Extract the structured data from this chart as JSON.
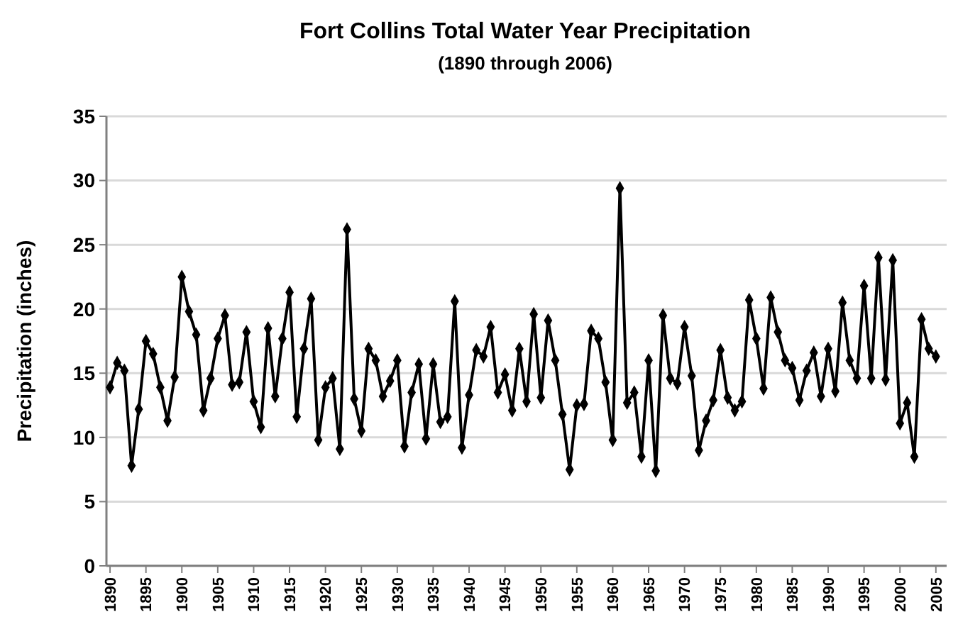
{
  "chart_data": {
    "type": "line",
    "title": "Fort Collins Total Water Year Precipitation",
    "subtitle": "(1890 through 2006)",
    "ylabel": "Precipitation (inches)",
    "x": [
      1890,
      1891,
      1892,
      1893,
      1894,
      1895,
      1896,
      1897,
      1898,
      1899,
      1900,
      1901,
      1902,
      1903,
      1904,
      1905,
      1906,
      1907,
      1908,
      1909,
      1910,
      1911,
      1912,
      1913,
      1914,
      1915,
      1916,
      1917,
      1918,
      1919,
      1920,
      1921,
      1922,
      1923,
      1924,
      1925,
      1926,
      1927,
      1928,
      1929,
      1930,
      1931,
      1932,
      1933,
      1934,
      1935,
      1936,
      1937,
      1938,
      1939,
      1940,
      1941,
      1942,
      1943,
      1944,
      1945,
      1946,
      1947,
      1948,
      1949,
      1950,
      1951,
      1952,
      1953,
      1954,
      1955,
      1956,
      1957,
      1958,
      1959,
      1960,
      1961,
      1962,
      1963,
      1964,
      1965,
      1966,
      1967,
      1968,
      1969,
      1970,
      1971,
      1972,
      1973,
      1974,
      1975,
      1976,
      1977,
      1978,
      1979,
      1980,
      1981,
      1982,
      1983,
      1984,
      1985,
      1986,
      1987,
      1988,
      1989,
      1990,
      1991,
      1992,
      1993,
      1994,
      1995,
      1996,
      1997,
      1998,
      1999,
      2000,
      2001,
      2002,
      2003,
      2004,
      2005
    ],
    "series": [
      {
        "color": "#000000",
        "values": [
          13.9,
          15.8,
          15.2,
          7.8,
          12.2,
          17.5,
          16.5,
          13.9,
          11.3,
          14.7,
          22.5,
          19.8,
          18.0,
          12.1,
          14.6,
          17.7,
          19.5,
          14.1,
          14.3,
          18.2,
          12.8,
          10.8,
          18.5,
          13.2,
          17.7,
          21.3,
          11.6,
          16.9,
          20.8,
          9.8,
          13.9,
          14.6,
          9.1,
          26.2,
          13.0,
          10.5,
          16.9,
          16.0,
          13.2,
          14.4,
          16.0,
          9.3,
          13.5,
          15.7,
          9.9,
          15.7,
          11.2,
          11.6,
          20.6,
          9.2,
          13.3,
          16.8,
          16.3,
          18.6,
          13.5,
          14.9,
          12.1,
          16.9,
          12.8,
          19.6,
          13.1,
          19.1,
          16.0,
          11.8,
          7.5,
          12.5,
          12.6,
          18.3,
          17.7,
          14.3,
          9.8,
          29.4,
          12.7,
          13.5,
          8.5,
          16.0,
          7.4,
          19.5,
          14.6,
          14.2,
          18.6,
          14.8,
          9.0,
          11.3,
          12.9,
          16.8,
          13.1,
          12.1,
          12.8,
          20.7,
          17.7,
          13.8,
          20.9,
          18.2,
          16.0,
          15.4,
          12.9,
          15.2,
          16.6,
          13.2,
          16.9,
          13.6,
          20.5,
          16.0,
          14.6,
          21.8,
          14.6,
          24.0,
          14.5,
          23.8,
          11.1,
          12.7,
          8.5,
          19.2,
          16.9,
          16.3
        ]
      }
    ],
    "xlim": [
      1889.5,
      2006.5
    ],
    "xticks": [
      1890,
      1895,
      1900,
      1905,
      1910,
      1915,
      1920,
      1925,
      1930,
      1935,
      1940,
      1945,
      1950,
      1955,
      1960,
      1965,
      1970,
      1975,
      1980,
      1985,
      1990,
      1995,
      2000,
      2005
    ],
    "ylim": [
      0,
      35
    ],
    "yticks": [
      0,
      5,
      10,
      15,
      20,
      25,
      30,
      35
    ],
    "grid": "y",
    "marker": "diamond",
    "line_style": "solid"
  }
}
